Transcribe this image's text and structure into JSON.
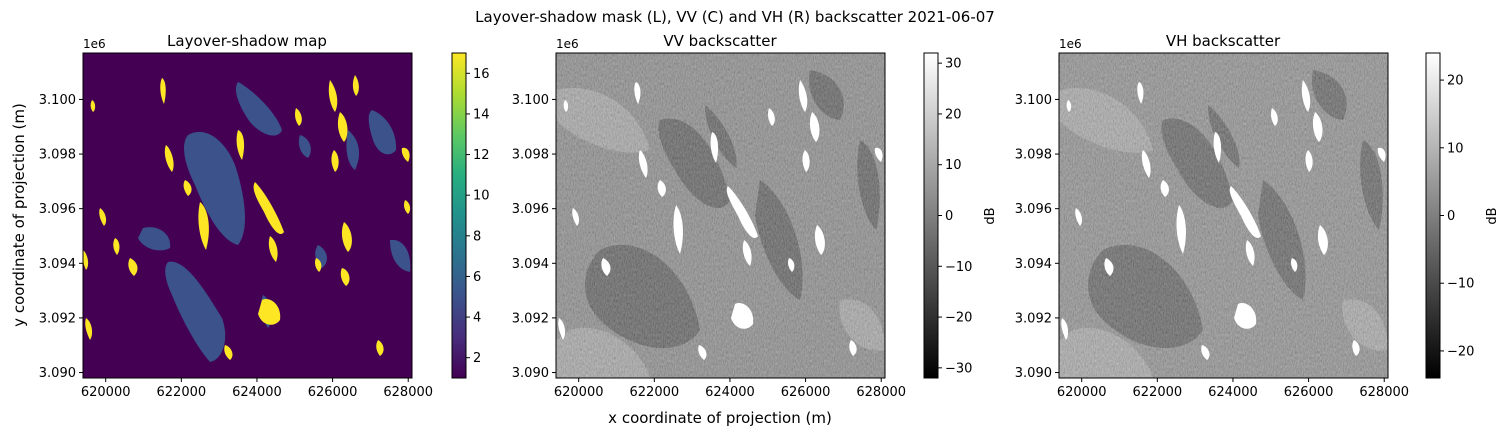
{
  "figure": {
    "suptitle": "Layover-shadow mask (L), VV (C) and VH (R) backscatter 2021-06-07",
    "shared_xlabel": "x coordinate of projection (m)",
    "shared_ylabel": "y coordinate of projection (m)"
  },
  "chart_data": [
    {
      "type": "heatmap",
      "title": "Layover-shadow map",
      "colormap": "viridis",
      "x_ticks": [
        "620000",
        "622000",
        "624000",
        "626000",
        "628000"
      ],
      "y_ticks": [
        "3.090",
        "3.092",
        "3.094",
        "3.096",
        "3.098",
        "3.100"
      ],
      "y_offset_label": "1e6",
      "xlim": [
        619400,
        628100
      ],
      "ylim": [
        3089800,
        3101700
      ],
      "colorbar": {
        "label": "",
        "range": [
          1,
          17
        ],
        "ticks": [
          "2",
          "4",
          "6",
          "8",
          "10",
          "12",
          "14",
          "16"
        ]
      }
    },
    {
      "type": "heatmap",
      "title": "VV backscatter",
      "colormap": "gray",
      "x_ticks": [
        "620000",
        "622000",
        "624000",
        "626000",
        "628000"
      ],
      "y_ticks": [
        "3.090",
        "3.092",
        "3.094",
        "3.096",
        "3.098",
        "3.100"
      ],
      "y_offset_label": "1e6",
      "xlim": [
        619400,
        628100
      ],
      "ylim": [
        3089800,
        3101700
      ],
      "colorbar": {
        "label": "dB",
        "range": [
          -32,
          32
        ],
        "ticks": [
          "−30",
          "−20",
          "−10",
          "0",
          "10",
          "20",
          "30"
        ]
      }
    },
    {
      "type": "heatmap",
      "title": "VH backscatter",
      "colormap": "gray",
      "x_ticks": [
        "620000",
        "622000",
        "624000",
        "626000",
        "628000"
      ],
      "y_ticks": [
        "3.090",
        "3.092",
        "3.094",
        "3.096",
        "3.098",
        "3.100"
      ],
      "y_offset_label": "1e6",
      "xlim": [
        619400,
        628100
      ],
      "ylim": [
        3089800,
        3101700
      ],
      "colorbar": {
        "label": "dB",
        "range": [
          -24,
          24
        ],
        "ticks": [
          "−20",
          "−10",
          "0",
          "10",
          "20"
        ]
      }
    }
  ]
}
